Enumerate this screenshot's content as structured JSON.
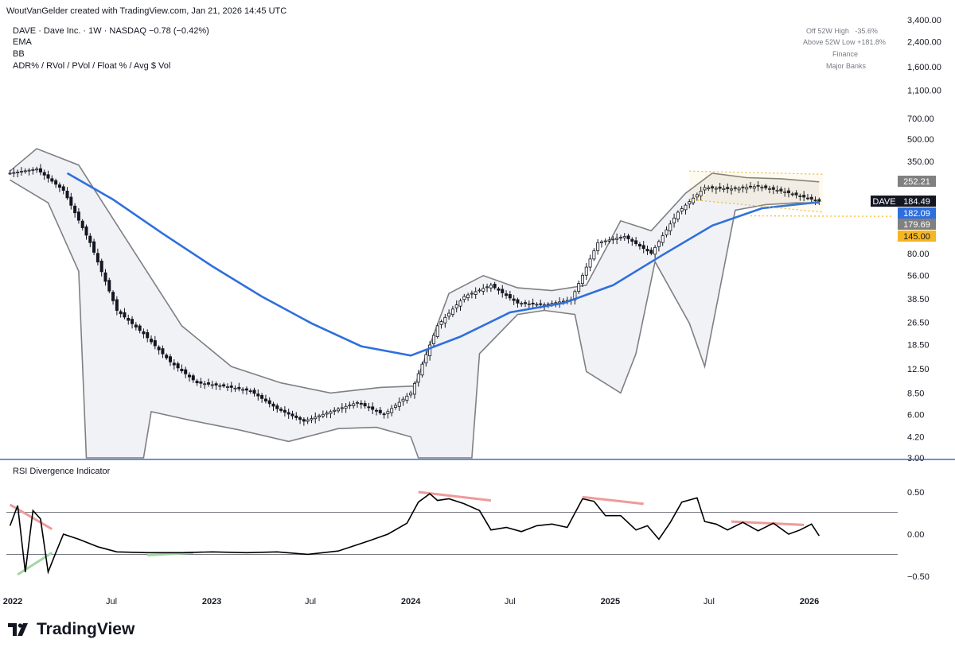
{
  "header": {
    "credit": "WoutVanGelder created with TradingView.com, Jan 21, 2026 14:45 UTC",
    "symbol_line": "DAVE · Dave Inc. · 1W · NASDAQ",
    "change": "−0.78 (−0.42%)",
    "indicators": [
      "EMA",
      "BB",
      "ADR% / RVol / PVol / Float % / Avg $ Vol"
    ]
  },
  "stats": [
    {
      "label": "Off 52W High",
      "value": "-35.6%"
    },
    {
      "label": "Above 52W Low",
      "value": "+181.8%"
    },
    {
      "label": "Finance",
      "value": ""
    },
    {
      "label": "Major Banks",
      "value": ""
    }
  ],
  "brand": {
    "name": "TradingView"
  },
  "colors": {
    "ema": "#2f6fdd",
    "bb_band": "#7f7f86",
    "bb_fill": "#f1f2f5",
    "candle": "#131722",
    "rsi_line": "#000000",
    "bear_div": "#ef9a9a",
    "bull_div": "#a5d6a7",
    "price_label": "#131722",
    "ema_label": "#2f6fdd",
    "upper_label": "#808080",
    "lower_label": "#808080",
    "level_label": "#f5b622",
    "channel": "#f5b622",
    "separator": "#3a6ecf"
  },
  "chart_data": [
    {
      "type": "line",
      "name": "price",
      "y_scale": "log",
      "ylim": [
        3.0,
        3400.0
      ],
      "y_ticks": [
        "3,400.00",
        "2,400.00",
        "1,600.00",
        "1,100.00",
        "700.00",
        "500.00",
        "350.00",
        "250.00",
        "130.00",
        "80.00",
        "56.00",
        "38.50",
        "26.50",
        "18.50",
        "12.50",
        "8.50",
        "6.00",
        "4.20",
        "3.00"
      ],
      "x_ticks": [
        "2022",
        "Jul",
        "2023",
        "Jul",
        "2024",
        "Jul",
        "2025",
        "Jul",
        "2026"
      ],
      "x_tick_dates": [
        "2022-01-01",
        "2022-07-01",
        "2023-01-01",
        "2023-07-01",
        "2024-01-01",
        "2024-07-01",
        "2025-01-01",
        "2025-07-01",
        "2026-01-01"
      ],
      "series": [
        {
          "x": [
            "2021-12-27",
            "2022-02-14",
            "2022-04-04",
            "2022-05-23",
            "2022-07-11",
            "2022-08-29",
            "2022-10-17",
            "2022-12-05",
            "2023-01-23",
            "2023-03-13",
            "2023-05-01",
            "2023-06-19",
            "2023-08-07",
            "2023-09-25",
            "2023-11-13",
            "2024-01-01",
            "2024-02-19",
            "2024-04-08",
            "2024-05-27",
            "2024-07-15",
            "2024-09-02",
            "2024-10-21",
            "2024-12-09",
            "2025-01-27",
            "2025-03-17",
            "2025-05-05",
            "2025-06-23",
            "2025-08-11",
            "2025-09-29",
            "2025-11-17",
            "2026-01-19"
          ],
          "y": [
            290,
            310,
            220,
            95,
            32,
            22,
            14,
            10,
            9.5,
            8.8,
            6.6,
            5.4,
            6.3,
            7.3,
            6.0,
            8.5,
            25,
            40,
            48,
            36,
            35,
            38,
            95,
            105,
            80,
            155,
            230,
            225,
            235,
            215,
            184.49
          ]
        }
      ],
      "ema": {
        "x": [
          "2022-04-11",
          "2022-07-04",
          "2022-10-03",
          "2023-01-02",
          "2023-04-03",
          "2023-07-03",
          "2023-10-02",
          "2024-01-01",
          "2024-04-01",
          "2024-07-01",
          "2024-10-07",
          "2025-01-06",
          "2025-04-07",
          "2025-07-07",
          "2025-10-06",
          "2026-01-19"
        ],
        "y": [
          290,
          190,
          110,
          65,
          40,
          26,
          18,
          15.5,
          21,
          31,
          36,
          48,
          78,
          125,
          165,
          182.09
        ]
      },
      "bb_upper": {
        "x": [
          "2021-12-27",
          "2022-02-14",
          "2022-05-02",
          "2022-08-01",
          "2022-11-07",
          "2023-02-06",
          "2023-05-08",
          "2023-08-07",
          "2023-11-06",
          "2024-01-08",
          "2024-03-11",
          "2024-05-13",
          "2024-07-15",
          "2024-09-16",
          "2024-11-18",
          "2025-01-20",
          "2025-03-17",
          "2025-05-19",
          "2025-07-07",
          "2025-09-08",
          "2025-11-10",
          "2026-01-19"
        ],
        "y": [
          300,
          430,
          330,
          95,
          25,
          13,
          10,
          8.5,
          9.3,
          9.5,
          42,
          56,
          46,
          44,
          48,
          135,
          115,
          210,
          290,
          270,
          265,
          252.21
        ]
      },
      "bb_lower": {
        "x": [
          "2021-12-27",
          "2022-03-07",
          "2022-05-02",
          "2022-05-16",
          "2022-08-29",
          "2022-09-12",
          "2022-11-21",
          "2023-02-20",
          "2023-05-22",
          "2023-08-21",
          "2023-10-30",
          "2024-01-01",
          "2024-01-15",
          "2024-04-22",
          "2024-05-06",
          "2024-07-15",
          "2024-09-02",
          "2024-10-28",
          "2024-11-18",
          "2025-01-20",
          "2025-02-17",
          "2025-03-24",
          "2025-05-26",
          "2025-06-23",
          "2025-08-18",
          "2025-10-13",
          "2025-12-08",
          "2026-01-19"
        ],
        "y": [
          260,
          180,
          60,
          3.0,
          3.0,
          6.3,
          5.5,
          4.7,
          3.9,
          4.8,
          4.9,
          4.2,
          3.0,
          3.0,
          16,
          30,
          32,
          30,
          12,
          8.5,
          16,
          70,
          26,
          13,
          160,
          175,
          180,
          179.69
        ]
      },
      "price_labels": [
        {
          "text": "252.21",
          "value": 252.21,
          "kind": "upper"
        },
        {
          "text": "184.49",
          "value": 184.49,
          "kind": "price",
          "symbol": "DAVE"
        },
        {
          "text": "182.09",
          "value": 182.09,
          "kind": "ema"
        },
        {
          "text": "179.69",
          "value": 179.69,
          "kind": "lower"
        },
        {
          "text": "145.00",
          "value": 145.0,
          "kind": "level"
        }
      ],
      "channel": {
        "x": [
          "2025-05-26",
          "2026-01-26"
        ],
        "upper": [
          300,
          285
        ],
        "lower": [
          190,
          155
        ]
      }
    },
    {
      "type": "line",
      "title": "RSI Divergence Indicator",
      "ylim": [
        -0.62,
        0.62
      ],
      "y_ticks": [
        "0.50",
        "0.00",
        "−0.50"
      ],
      "y_tick_values": [
        0.5,
        0.0,
        -0.5
      ],
      "hlines": [
        0.26,
        -0.24
      ],
      "series": [
        {
          "x": [
            "2021-12-27",
            "2022-01-10",
            "2022-01-24",
            "2022-02-07",
            "2022-02-21",
            "2022-03-07",
            "2022-03-21",
            "2022-04-04",
            "2022-05-02",
            "2022-06-06",
            "2022-07-11",
            "2022-09-05",
            "2022-11-07",
            "2023-01-02",
            "2023-03-06",
            "2023-05-01",
            "2023-06-26",
            "2023-08-21",
            "2023-10-16",
            "2023-11-20",
            "2023-12-25",
            "2024-01-15",
            "2024-02-05",
            "2024-02-19",
            "2024-03-11",
            "2024-04-08",
            "2024-05-06",
            "2024-05-27",
            "2024-06-24",
            "2024-07-22",
            "2024-08-19",
            "2024-09-16",
            "2024-10-14",
            "2024-11-11",
            "2024-12-02",
            "2024-12-23",
            "2025-01-20",
            "2025-02-17",
            "2025-03-10",
            "2025-03-31",
            "2025-04-21",
            "2025-05-12",
            "2025-06-09",
            "2025-06-23",
            "2025-07-14",
            "2025-08-04",
            "2025-09-01",
            "2025-09-29",
            "2025-10-27",
            "2025-11-24",
            "2025-12-15",
            "2026-01-05",
            "2026-01-19"
          ],
          "y": [
            0.1,
            0.34,
            -0.45,
            0.28,
            0.18,
            -0.45,
            -0.22,
            0.0,
            -0.06,
            -0.15,
            -0.21,
            -0.22,
            -0.22,
            -0.21,
            -0.22,
            -0.21,
            -0.24,
            -0.2,
            -0.08,
            0.0,
            0.13,
            0.38,
            0.48,
            0.4,
            0.42,
            0.36,
            0.28,
            0.05,
            0.08,
            0.03,
            0.1,
            0.12,
            0.08,
            0.42,
            0.39,
            0.22,
            0.22,
            0.05,
            0.1,
            -0.06,
            0.14,
            0.38,
            0.43,
            0.15,
            0.12,
            0.05,
            0.14,
            0.04,
            0.13,
            0.0,
            0.05,
            0.12,
            -0.02
          ]
        }
      ],
      "bear_divergences": [
        {
          "x": [
            "2021-12-27",
            "2022-03-14"
          ],
          "y": [
            0.35,
            0.06
          ]
        },
        {
          "x": [
            "2024-01-15",
            "2024-05-27"
          ],
          "y": [
            0.5,
            0.4
          ]
        },
        {
          "x": [
            "2024-11-11",
            "2025-03-03"
          ],
          "y": [
            0.44,
            0.36
          ]
        },
        {
          "x": [
            "2025-08-11",
            "2025-12-22"
          ],
          "y": [
            0.15,
            0.11
          ]
        }
      ],
      "bull_divergences": [
        {
          "x": [
            "2022-01-10",
            "2022-03-14"
          ],
          "y": [
            -0.48,
            -0.22
          ]
        },
        {
          "x": [
            "2022-09-05",
            "2022-11-28"
          ],
          "y": [
            -0.25,
            -0.22
          ]
        }
      ]
    }
  ]
}
